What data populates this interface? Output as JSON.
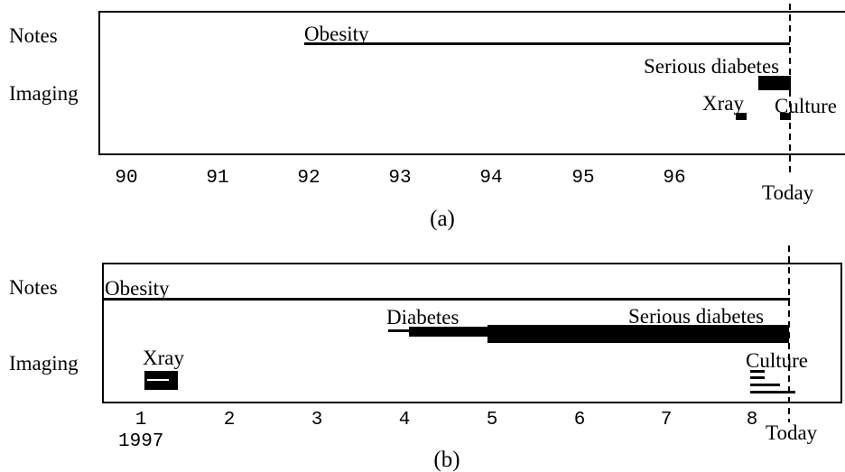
{
  "panel_a": {
    "caption": "(a)",
    "row_labels": {
      "notes": "Notes",
      "imaging": "Imaging"
    },
    "axis_ticks": [
      "90",
      "91",
      "92",
      "93",
      "94",
      "95",
      "96"
    ],
    "today_label": "Today",
    "events": {
      "obesity": "Obesity",
      "serious_diabetes": "Serious diabetes",
      "xray": "Xray",
      "culture": "Culture"
    }
  },
  "panel_b": {
    "caption": "(b)",
    "row_labels": {
      "notes": "Notes",
      "imaging": "Imaging"
    },
    "axis_ticks": [
      "1",
      "2",
      "3",
      "4",
      "5",
      "6",
      "7",
      "8"
    ],
    "year_label": "1997",
    "today_label": "Today",
    "events": {
      "obesity": "Obesity",
      "diabetes": "Diabetes",
      "serious_diabetes": "Serious diabetes",
      "xray": "Xray",
      "culture": "Culture"
    }
  },
  "colors": {
    "ink": "#000000",
    "background": "#ffffff"
  }
}
